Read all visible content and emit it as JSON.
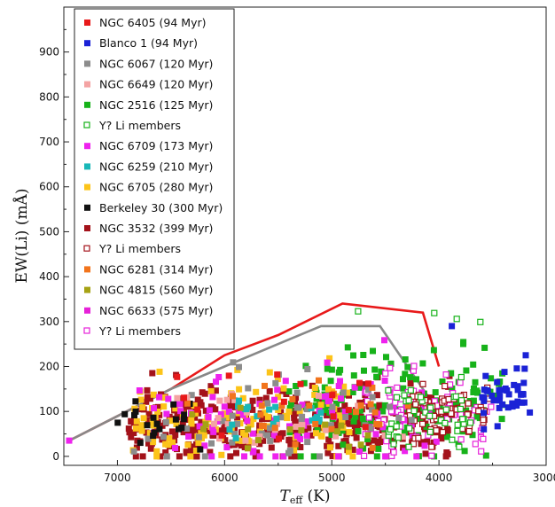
{
  "chart_data": {
    "type": "scatter",
    "title": "",
    "xlabel_main": "T",
    "xlabel_sub": "eff",
    "xlabel_unit": " (K)",
    "ylabel": "EW(Li) (mÅ)",
    "xlim": [
      7500,
      3000
    ],
    "ylim": [
      -20,
      1000
    ],
    "x_reversed": true,
    "grid": false,
    "legend_position": "top-left",
    "xticks": [
      7000,
      6000,
      5000,
      4000,
      3000
    ],
    "xtick_labels": [
      "7000",
      "6000",
      "5000",
      "4000",
      "3000"
    ],
    "yticks": [
      0,
      100,
      200,
      300,
      400,
      500,
      600,
      700,
      800,
      900
    ],
    "ytick_labels": [
      "0",
      "100",
      "200",
      "300",
      "400",
      "500",
      "600",
      "700",
      "800",
      "900"
    ],
    "legend": [
      {
        "label": "NGC 6405 (94 Myr)",
        "color": "#e8191a",
        "marker": "square-filled"
      },
      {
        "label": "Blanco 1 (94 Myr)",
        "color": "#1b22d6",
        "marker": "square-filled"
      },
      {
        "label": "NGC 6067 (120 Myr)",
        "color": "#8c8c8c",
        "marker": "square-filled"
      },
      {
        "label": "NGC 6649 (120 Myr)",
        "color": "#f4a3a3",
        "marker": "square-filled"
      },
      {
        "label": "NGC 2516 (125 Myr)",
        "color": "#17b21a",
        "marker": "square-filled"
      },
      {
        "label": "Y? Li members",
        "color": "#17b21a",
        "marker": "square-open"
      },
      {
        "label": "NGC 6709 (173 Myr)",
        "color": "#ee22ee",
        "marker": "square-filled"
      },
      {
        "label": "NGC 6259 (210 Myr)",
        "color": "#19b8b8",
        "marker": "square-filled"
      },
      {
        "label": "NGC 6705 (280 Myr)",
        "color": "#fcc419",
        "marker": "square-filled"
      },
      {
        "label": "Berkeley 30 (300 Myr)",
        "color": "#111111",
        "marker": "square-filled"
      },
      {
        "label": "NGC 3532 (399 Myr)",
        "color": "#a3121a",
        "marker": "square-filled"
      },
      {
        "label": "Y? Li members",
        "color": "#a3121a",
        "marker": "square-open"
      },
      {
        "label": "NGC 6281 (314 Myr)",
        "color": "#f2741c",
        "marker": "square-filled"
      },
      {
        "label": "NGC 4815 (560 Myr)",
        "color": "#a6a214",
        "marker": "square-filled"
      },
      {
        "label": "NGC 6633 (575 Myr)",
        "color": "#e621d8",
        "marker": "square-filled"
      },
      {
        "label": "Y? Li members",
        "color": "#e621d8",
        "marker": "square-open"
      }
    ],
    "envelopes": [
      {
        "color": "#e8191a",
        "x": [
          7450,
          6500,
          6000,
          5500,
          4900,
          4150,
          4000
        ],
        "y": [
          35,
          150,
          225,
          270,
          340,
          320,
          200
        ]
      },
      {
        "color": "#888888",
        "x": [
          7450,
          6500,
          6000,
          5500,
          5100,
          4550,
          4150,
          4000
        ],
        "y": [
          35,
          150,
          200,
          250,
          290,
          290,
          150,
          100
        ]
      }
    ],
    "clouds": [
      {
        "color": "#a3121a",
        "open": false,
        "count": 380,
        "xr": [
          6900,
          3900
        ],
        "ymean": 70,
        "ysd": 40,
        "ymin": 0,
        "ymax": 240
      },
      {
        "color": "#17b21a",
        "open": false,
        "count": 160,
        "xr": [
          5400,
          3400
        ],
        "ymean": 110,
        "ysd": 60,
        "ymin": 0,
        "ymax": 285
      },
      {
        "color": "#fcc419",
        "open": false,
        "count": 120,
        "xr": [
          6900,
          4800
        ],
        "ymean": 80,
        "ysd": 45,
        "ymin": 0,
        "ymax": 240
      },
      {
        "color": "#ee22ee",
        "open": false,
        "count": 90,
        "xr": [
          6800,
          4000
        ],
        "ymean": 85,
        "ysd": 55,
        "ymin": 0,
        "ymax": 285
      },
      {
        "color": "#e621d8",
        "open": true,
        "count": 70,
        "xr": [
          4700,
          3500
        ],
        "ymean": 90,
        "ysd": 45,
        "ymin": 0,
        "ymax": 200
      },
      {
        "color": "#a3121a",
        "open": true,
        "count": 70,
        "xr": [
          4300,
          3500
        ],
        "ymean": 100,
        "ysd": 35,
        "ymin": 20,
        "ymax": 200
      },
      {
        "color": "#1b22d6",
        "open": false,
        "count": 40,
        "xr": [
          3600,
          3150
        ],
        "ymean": 130,
        "ysd": 35,
        "ymin": 60,
        "ymax": 225
      },
      {
        "color": "#8c8c8c",
        "open": false,
        "count": 50,
        "xr": [
          6900,
          4200
        ],
        "ymean": 90,
        "ysd": 50,
        "ymin": 0,
        "ymax": 230
      },
      {
        "color": "#f4a3a3",
        "open": false,
        "count": 25,
        "xr": [
          6500,
          4300
        ],
        "ymean": 85,
        "ysd": 40,
        "ymin": 0,
        "ymax": 200
      },
      {
        "color": "#19b8b8",
        "open": false,
        "count": 20,
        "xr": [
          6000,
          5100
        ],
        "ymean": 70,
        "ysd": 30,
        "ymin": 0,
        "ymax": 150
      },
      {
        "color": "#111111",
        "open": false,
        "count": 20,
        "xr": [
          7000,
          6200
        ],
        "ymean": 70,
        "ysd": 30,
        "ymin": 10,
        "ymax": 140
      },
      {
        "color": "#f2741c",
        "open": false,
        "count": 25,
        "xr": [
          6600,
          4200
        ],
        "ymean": 80,
        "ysd": 40,
        "ymin": 0,
        "ymax": 200
      },
      {
        "color": "#a6a214",
        "open": false,
        "count": 15,
        "xr": [
          6400,
          4600
        ],
        "ymean": 60,
        "ysd": 30,
        "ymin": 0,
        "ymax": 140
      },
      {
        "color": "#e8191a",
        "open": false,
        "count": 15,
        "xr": [
          6600,
          4600
        ],
        "ymean": 120,
        "ysd": 50,
        "ymin": 20,
        "ymax": 250
      },
      {
        "color": "#17b21a",
        "open": true,
        "count": 40,
        "xr": [
          4500,
          3700
        ],
        "ymean": 90,
        "ysd": 40,
        "ymin": 20,
        "ymax": 200
      }
    ],
    "highlight_points": [
      {
        "x": 4750,
        "y": 322,
        "color": "#17b21a",
        "open": true
      },
      {
        "x": 4040,
        "y": 318,
        "color": "#17b21a",
        "open": true
      },
      {
        "x": 3830,
        "y": 305,
        "color": "#17b21a",
        "open": true
      },
      {
        "x": 3610,
        "y": 298,
        "color": "#17b21a",
        "open": true
      },
      {
        "x": 3880,
        "y": 290,
        "color": "#1b22d6",
        "open": false
      },
      {
        "x": 7450,
        "y": 35,
        "color": "#ee22ee",
        "open": false
      },
      {
        "x": 3190,
        "y": 225,
        "color": "#1b22d6",
        "open": false
      },
      {
        "x": 3200,
        "y": 195,
        "color": "#1b22d6",
        "open": false
      }
    ]
  }
}
